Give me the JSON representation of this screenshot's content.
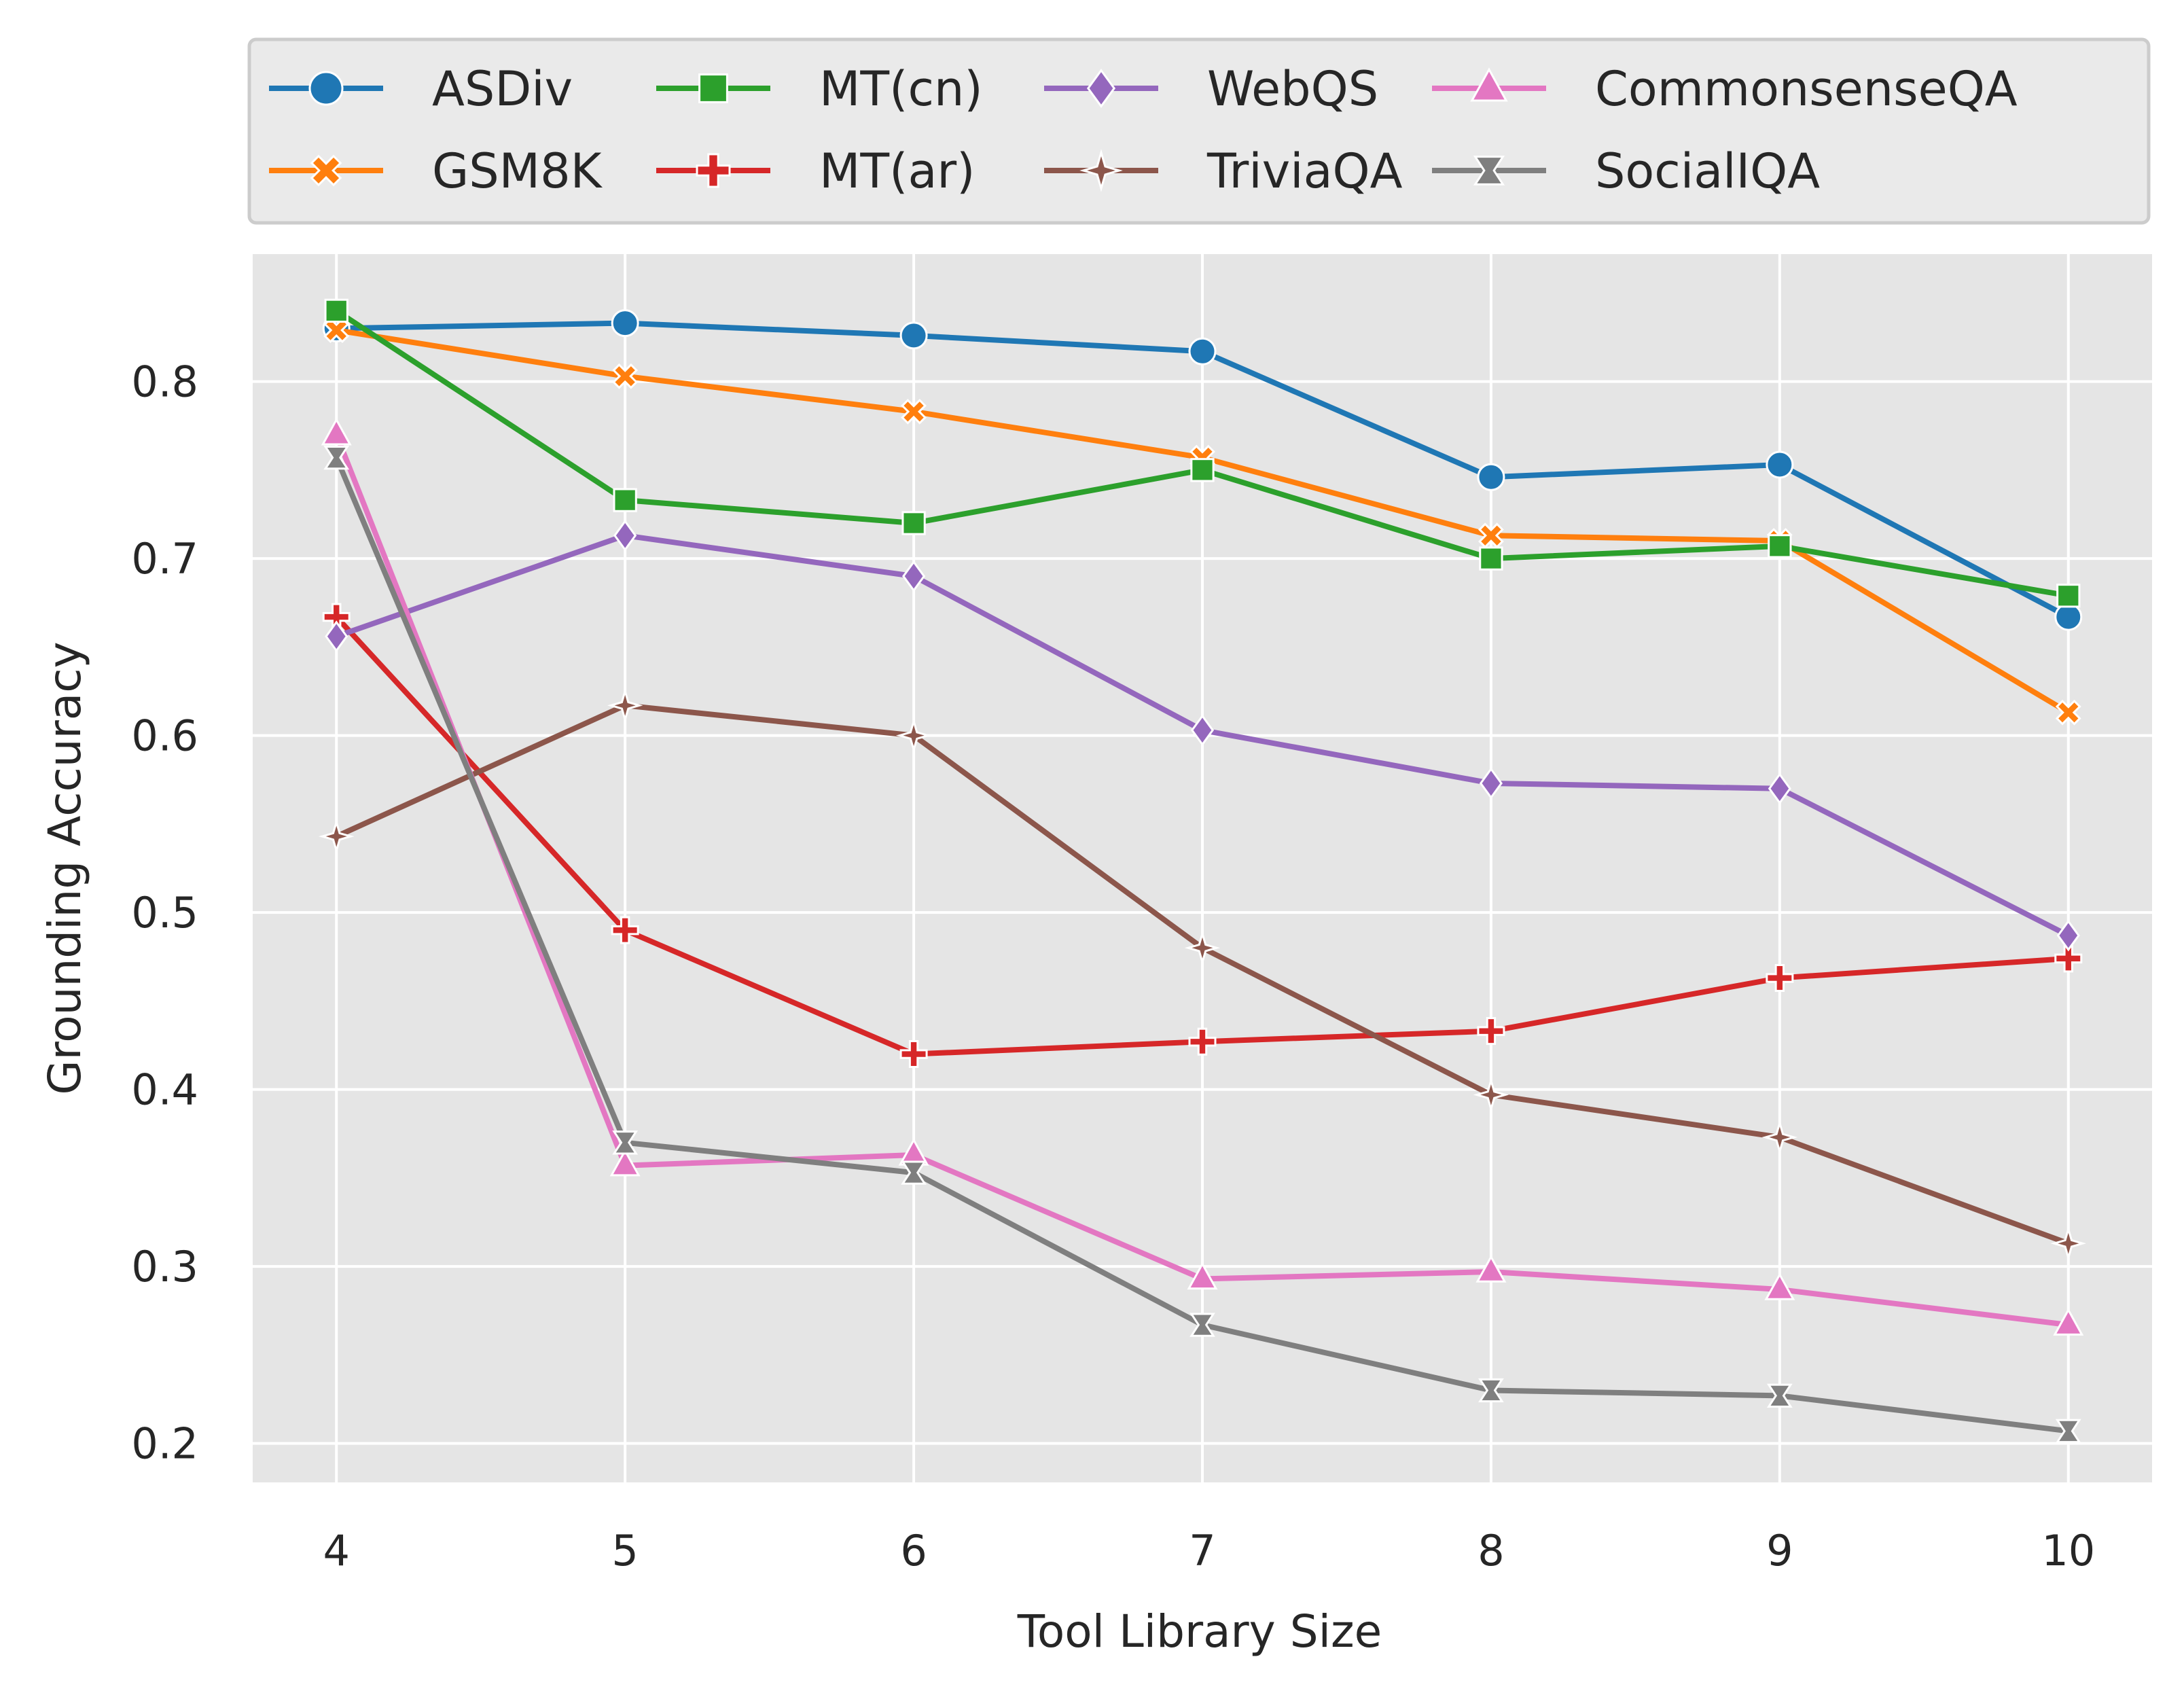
{
  "chart_data": {
    "type": "line",
    "xlabel": "Tool Library Size",
    "ylabel": "Grounding Accuracy",
    "x": [
      4,
      5,
      6,
      7,
      8,
      9,
      10
    ],
    "xlim": [
      3.71,
      10.29
    ],
    "ylim": [
      0.178,
      0.872
    ],
    "xticks": [
      4,
      5,
      6,
      7,
      8,
      9,
      10
    ],
    "xtick_labels": [
      "4",
      "5",
      "6",
      "7",
      "8",
      "9",
      "10"
    ],
    "yticks": [
      0.2,
      0.3,
      0.4,
      0.5,
      0.6,
      0.7,
      0.8
    ],
    "ytick_labels": [
      "0.2",
      "0.3",
      "0.4",
      "0.5",
      "0.6",
      "0.7",
      "0.8"
    ],
    "grid": true,
    "legend_position": "top, above plot (4 columns)",
    "background": "#e5e5e5",
    "series": [
      {
        "name": "ASDiv",
        "color": "#1f77b4",
        "marker": "circle",
        "values": [
          0.83,
          0.833,
          0.826,
          0.817,
          0.746,
          0.753,
          0.667
        ]
      },
      {
        "name": "GSM8K",
        "color": "#ff7f0e",
        "marker": "x",
        "values": [
          0.829,
          0.803,
          0.783,
          0.757,
          0.713,
          0.71,
          0.613
        ]
      },
      {
        "name": "MT(cn)",
        "color": "#2ca02c",
        "marker": "square",
        "values": [
          0.84,
          0.733,
          0.72,
          0.75,
          0.7,
          0.707,
          0.679
        ]
      },
      {
        "name": "MT(ar)",
        "color": "#d62728",
        "marker": "plus",
        "values": [
          0.667,
          0.49,
          0.42,
          0.427,
          0.433,
          0.463,
          0.474
        ]
      },
      {
        "name": "WebQS",
        "color": "#9467bd",
        "marker": "diamond",
        "values": [
          0.656,
          0.713,
          0.69,
          0.603,
          0.573,
          0.57,
          0.487
        ]
      },
      {
        "name": "TriviaQA",
        "color": "#8c564b",
        "marker": "star4",
        "values": [
          0.543,
          0.617,
          0.6,
          0.48,
          0.397,
          0.373,
          0.313
        ]
      },
      {
        "name": "CommonsenseQA",
        "color": "#e377c2",
        "marker": "triangle",
        "values": [
          0.77,
          0.357,
          0.363,
          0.293,
          0.297,
          0.287,
          0.267
        ]
      },
      {
        "name": "SocialIQA",
        "color": "#7f7f7f",
        "marker": "hourglass",
        "values": [
          0.757,
          0.37,
          0.353,
          0.267,
          0.23,
          0.227,
          0.207
        ]
      }
    ]
  }
}
